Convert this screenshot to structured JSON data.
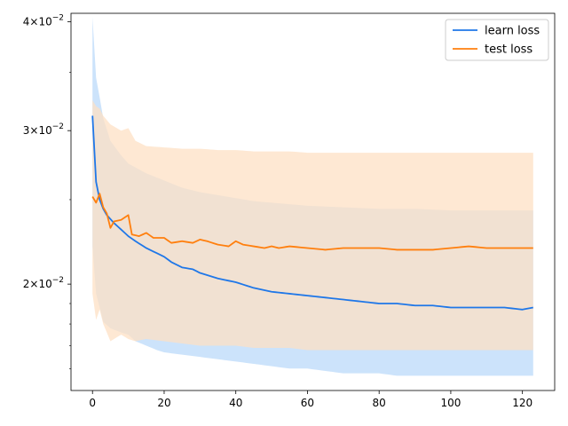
{
  "chart_data": {
    "type": "line",
    "title": "",
    "xlabel": "",
    "ylabel": "",
    "yscale": "log",
    "xlim": [
      -6,
      129
    ],
    "ylim": [
      0.0151,
      0.0409
    ],
    "xticks": [
      0,
      20,
      40,
      60,
      80,
      100,
      120
    ],
    "xtick_labels": [
      "0",
      "20",
      "40",
      "60",
      "80",
      "100",
      "120"
    ],
    "yticks": [
      0.02,
      0.03,
      0.04
    ],
    "ytick_labels": [
      {
        "mantissa": "2",
        "base": "10",
        "exp": "−2"
      },
      {
        "mantissa": "3",
        "base": "10",
        "exp": "−2"
      },
      {
        "mantissa": "4",
        "base": "10",
        "exp": "−2"
      }
    ],
    "grid": false,
    "legend_position": "top-right",
    "x_range": [
      0,
      123
    ],
    "series": [
      {
        "name": "learn loss",
        "color": "#1f77e8",
        "band_color": "#cce3fb",
        "mean": [
          [
            0,
            0.0312
          ],
          [
            1,
            0.0262
          ],
          [
            2,
            0.025
          ],
          [
            3,
            0.0244
          ],
          [
            4,
            0.024
          ],
          [
            6,
            0.0235
          ],
          [
            8,
            0.0231
          ],
          [
            10,
            0.0227
          ],
          [
            12,
            0.0224
          ],
          [
            15,
            0.022
          ],
          [
            18,
            0.0217
          ],
          [
            20,
            0.0215
          ],
          [
            22,
            0.0212
          ],
          [
            25,
            0.0209
          ],
          [
            28,
            0.0208
          ],
          [
            30,
            0.0206
          ],
          [
            35,
            0.0203
          ],
          [
            40,
            0.0201
          ],
          [
            45,
            0.0198
          ],
          [
            50,
            0.0196
          ],
          [
            55,
            0.0195
          ],
          [
            60,
            0.0194
          ],
          [
            65,
            0.0193
          ],
          [
            70,
            0.0192
          ],
          [
            75,
            0.0191
          ],
          [
            80,
            0.019
          ],
          [
            85,
            0.019
          ],
          [
            90,
            0.0189
          ],
          [
            95,
            0.0189
          ],
          [
            100,
            0.0188
          ],
          [
            105,
            0.0188
          ],
          [
            110,
            0.0188
          ],
          [
            115,
            0.0188
          ],
          [
            120,
            0.0187
          ],
          [
            123,
            0.0188
          ]
        ],
        "lower": [
          [
            0,
            0.0221
          ],
          [
            1,
            0.0195
          ],
          [
            3,
            0.0181
          ],
          [
            5,
            0.0178
          ],
          [
            8,
            0.0176
          ],
          [
            10,
            0.0175
          ],
          [
            12,
            0.0172
          ],
          [
            15,
            0.017
          ],
          [
            18,
            0.0168
          ],
          [
            20,
            0.0167
          ],
          [
            25,
            0.0166
          ],
          [
            30,
            0.0165
          ],
          [
            35,
            0.0164
          ],
          [
            40,
            0.0163
          ],
          [
            45,
            0.0162
          ],
          [
            50,
            0.0161
          ],
          [
            55,
            0.016
          ],
          [
            60,
            0.016
          ],
          [
            65,
            0.0159
          ],
          [
            70,
            0.0158
          ],
          [
            75,
            0.0158
          ],
          [
            80,
            0.0158
          ],
          [
            85,
            0.0157
          ],
          [
            90,
            0.0157
          ],
          [
            95,
            0.0157
          ],
          [
            100,
            0.0157
          ],
          [
            105,
            0.0157
          ],
          [
            110,
            0.0157
          ],
          [
            115,
            0.0157
          ],
          [
            120,
            0.0157
          ],
          [
            123,
            0.0157
          ]
        ],
        "upper": [
          [
            0,
            0.0405
          ],
          [
            1,
            0.0345
          ],
          [
            3,
            0.031
          ],
          [
            5,
            0.0292
          ],
          [
            8,
            0.0281
          ],
          [
            10,
            0.0275
          ],
          [
            15,
            0.0268
          ],
          [
            20,
            0.0263
          ],
          [
            25,
            0.0258
          ],
          [
            30,
            0.0255
          ],
          [
            35,
            0.0253
          ],
          [
            40,
            0.0251
          ],
          [
            45,
            0.0249
          ],
          [
            50,
            0.0248
          ],
          [
            60,
            0.0246
          ],
          [
            70,
            0.0245
          ],
          [
            80,
            0.0244
          ],
          [
            90,
            0.0244
          ],
          [
            100,
            0.0243
          ],
          [
            110,
            0.0243
          ],
          [
            120,
            0.0243
          ],
          [
            123,
            0.0243
          ]
        ]
      },
      {
        "name": "test loss",
        "color": "#ff7f0e",
        "band_color": "#fde0c4",
        "mean": [
          [
            0,
            0.0252
          ],
          [
            1,
            0.0248
          ],
          [
            2,
            0.0254
          ],
          [
            3,
            0.0245
          ],
          [
            4,
            0.0241
          ],
          [
            5,
            0.0232
          ],
          [
            6,
            0.0236
          ],
          [
            8,
            0.0237
          ],
          [
            10,
            0.024
          ],
          [
            11,
            0.0228
          ],
          [
            13,
            0.0227
          ],
          [
            15,
            0.0229
          ],
          [
            17,
            0.0226
          ],
          [
            20,
            0.0226
          ],
          [
            22,
            0.0223
          ],
          [
            25,
            0.0224
          ],
          [
            28,
            0.0223
          ],
          [
            30,
            0.0225
          ],
          [
            32,
            0.0224
          ],
          [
            35,
            0.0222
          ],
          [
            38,
            0.0221
          ],
          [
            40,
            0.0224
          ],
          [
            42,
            0.0222
          ],
          [
            45,
            0.0221
          ],
          [
            48,
            0.022
          ],
          [
            50,
            0.0221
          ],
          [
            52,
            0.022
          ],
          [
            55,
            0.0221
          ],
          [
            60,
            0.022
          ],
          [
            65,
            0.0219
          ],
          [
            70,
            0.022
          ],
          [
            75,
            0.022
          ],
          [
            80,
            0.022
          ],
          [
            85,
            0.0219
          ],
          [
            90,
            0.0219
          ],
          [
            95,
            0.0219
          ],
          [
            100,
            0.022
          ],
          [
            105,
            0.0221
          ],
          [
            110,
            0.022
          ],
          [
            115,
            0.022
          ],
          [
            120,
            0.022
          ],
          [
            123,
            0.022
          ]
        ],
        "lower": [
          [
            0,
            0.0195
          ],
          [
            1,
            0.0182
          ],
          [
            2,
            0.0187
          ],
          [
            3,
            0.018
          ],
          [
            5,
            0.0172
          ],
          [
            8,
            0.0175
          ],
          [
            10,
            0.0173
          ],
          [
            12,
            0.0172
          ],
          [
            15,
            0.0173
          ],
          [
            20,
            0.0172
          ],
          [
            25,
            0.0171
          ],
          [
            30,
            0.017
          ],
          [
            35,
            0.017
          ],
          [
            40,
            0.017
          ],
          [
            45,
            0.0169
          ],
          [
            50,
            0.0169
          ],
          [
            55,
            0.0169
          ],
          [
            60,
            0.0168
          ],
          [
            70,
            0.0168
          ],
          [
            80,
            0.0168
          ],
          [
            90,
            0.0168
          ],
          [
            100,
            0.0168
          ],
          [
            110,
            0.0168
          ],
          [
            120,
            0.0168
          ],
          [
            123,
            0.0168
          ]
        ],
        "upper": [
          [
            0,
            0.0325
          ],
          [
            1,
            0.032
          ],
          [
            2,
            0.0318
          ],
          [
            3,
            0.0312
          ],
          [
            5,
            0.0305
          ],
          [
            8,
            0.03
          ],
          [
            10,
            0.0302
          ],
          [
            12,
            0.0292
          ],
          [
            15,
            0.0288
          ],
          [
            20,
            0.0287
          ],
          [
            25,
            0.0286
          ],
          [
            30,
            0.0286
          ],
          [
            35,
            0.0285
          ],
          [
            40,
            0.0285
          ],
          [
            45,
            0.0284
          ],
          [
            50,
            0.0284
          ],
          [
            55,
            0.0284
          ],
          [
            60,
            0.0283
          ],
          [
            70,
            0.0283
          ],
          [
            80,
            0.0283
          ],
          [
            90,
            0.0283
          ],
          [
            100,
            0.0283
          ],
          [
            110,
            0.0283
          ],
          [
            120,
            0.0283
          ],
          [
            123,
            0.0283
          ]
        ]
      }
    ]
  }
}
